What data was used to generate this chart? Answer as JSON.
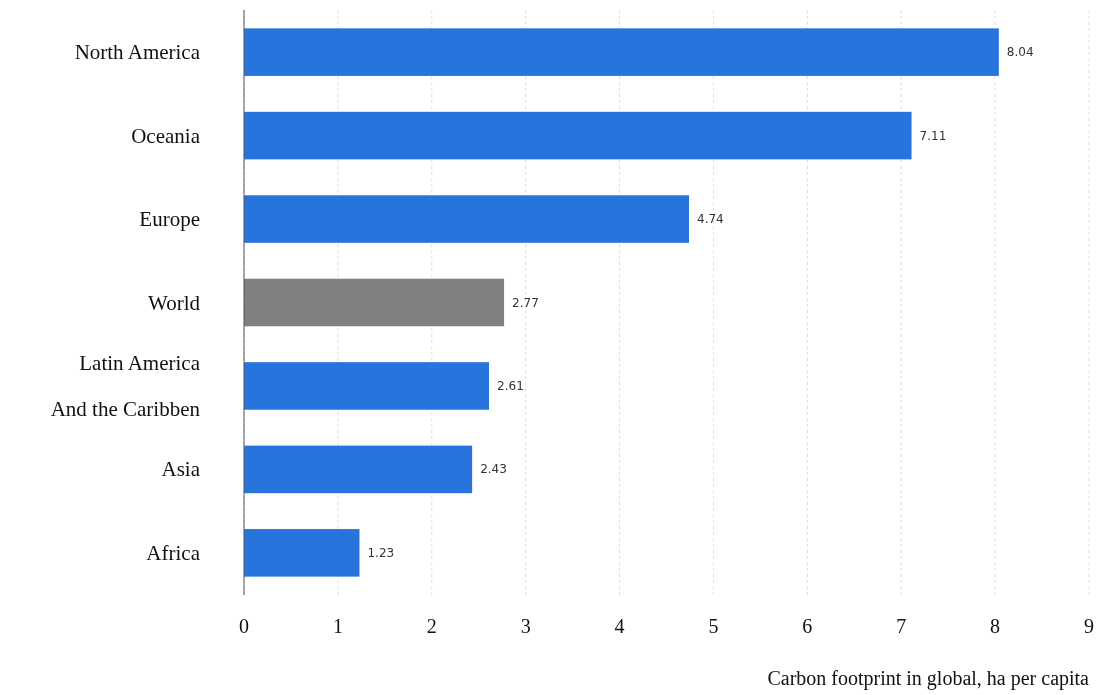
{
  "chart_data": {
    "type": "bar",
    "orientation": "horizontal",
    "categories": [
      "North America",
      "Oceania",
      "Europe",
      "World",
      "Latin America And the Caribben",
      "Asia",
      "Africa"
    ],
    "values": [
      8.04,
      7.11,
      4.74,
      2.77,
      2.61,
      2.43,
      1.23
    ],
    "colors": [
      "#2874dd",
      "#2874dd",
      "#2874dd",
      "#808080",
      "#2874dd",
      "#2874dd",
      "#2874dd"
    ],
    "xlim": [
      0,
      9
    ],
    "xticks": [
      0,
      1,
      2,
      3,
      4,
      5,
      6,
      7,
      8,
      9
    ],
    "grid": "x",
    "data_labels": true,
    "xlabel": "Carbon footprint in global, ha per capita"
  }
}
